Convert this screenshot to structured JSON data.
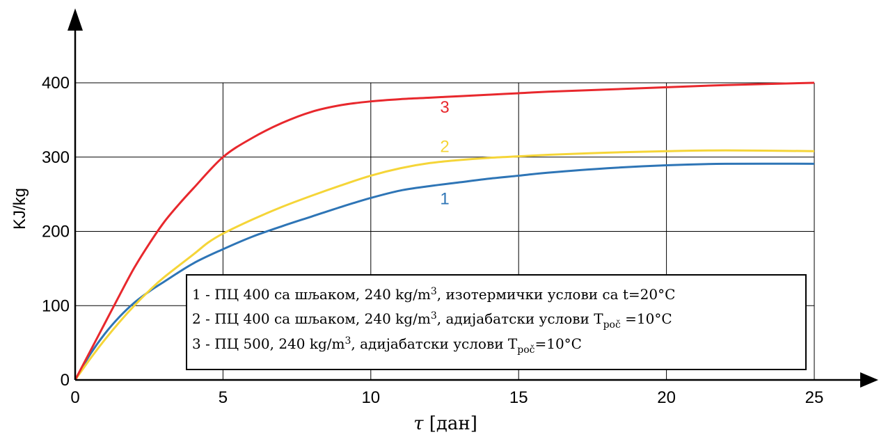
{
  "chart_data": {
    "type": "line",
    "xlabel": "τ [дан]",
    "xlabel_symbol": "τ",
    "xlabel_unit": "[дан]",
    "ylabel": "KJ/kg",
    "xlim": [
      0,
      25
    ],
    "ylim": [
      0,
      400
    ],
    "x_ticks": [
      0,
      5,
      10,
      15,
      20,
      25
    ],
    "y_ticks": [
      0,
      100,
      200,
      300,
      400
    ],
    "x_tick_labels": [
      "0",
      "5",
      "10",
      "15",
      "20",
      "25"
    ],
    "y_tick_labels": [
      "0",
      "100",
      "200",
      "300",
      "400"
    ],
    "grid": true,
    "legend_position": "bottom-right",
    "series": [
      {
        "name": "1",
        "color": "#2e75b6",
        "x": [
          0,
          0.5,
          1,
          1.5,
          2,
          2.5,
          3,
          4,
          5,
          6,
          7,
          8,
          9,
          10,
          11,
          12,
          13,
          14,
          15,
          16,
          18,
          20,
          22,
          25
        ],
        "y": [
          0,
          34,
          62,
          85,
          104,
          119,
          132,
          157,
          176,
          193,
          207,
          220,
          233,
          245,
          255,
          261,
          266,
          271,
          275,
          279,
          285,
          289,
          291,
          291
        ]
      },
      {
        "name": "2",
        "color": "#f5d538",
        "x": [
          0,
          0.5,
          1,
          1.5,
          2,
          2.5,
          3,
          4,
          4.5,
          5,
          6,
          7,
          8,
          9,
          10,
          11,
          12,
          13,
          14,
          15,
          16,
          18,
          20,
          22,
          25
        ],
        "y": [
          0,
          28,
          54,
          78,
          100,
          120,
          138,
          169,
          185,
          197,
          216,
          233,
          248,
          262,
          275,
          285,
          292,
          296,
          299,
          301,
          303,
          306,
          308,
          309,
          308
        ]
      },
      {
        "name": "3",
        "color": "#e8282d",
        "x": [
          0,
          0.5,
          1,
          1.5,
          2,
          2.5,
          3,
          3.5,
          4,
          5,
          6,
          7,
          8,
          9,
          10,
          11,
          12,
          13,
          14,
          15,
          16,
          18,
          20,
          22,
          25
        ],
        "y": [
          0,
          38,
          76,
          114,
          151,
          183,
          212,
          236,
          258,
          300,
          326,
          346,
          361,
          370,
          375,
          378,
          380,
          382,
          384,
          386,
          388,
          391,
          394,
          397,
          400
        ]
      }
    ],
    "series_labels": [
      {
        "text": "1",
        "x": 12.5,
        "y": 245,
        "color": "#2e75b6"
      },
      {
        "text": "2",
        "x": 12.5,
        "y": 315,
        "color": "#f5d538"
      },
      {
        "text": "3",
        "x": 12.5,
        "y": 368,
        "color": "#e8282d"
      }
    ],
    "legend": [
      {
        "prefix": "1 - ПЦ 400 са шљаком, 240 kg/m",
        "sup": "3",
        "suffix": ", изотермички услови са t=20°C",
        "sub": "",
        "tail": ""
      },
      {
        "prefix": "2 - ПЦ 400 са шљаком, 240 kg/m",
        "sup": "3",
        "suffix": ", адијабатски услови T",
        "sub": "poč",
        "tail": " =10°C"
      },
      {
        "prefix": "3 - ПЦ 500, 240 kg/m",
        "sup": "3",
        "suffix": ", адијабатски услови T",
        "sub": "poč",
        "tail": "=10°C"
      }
    ]
  }
}
